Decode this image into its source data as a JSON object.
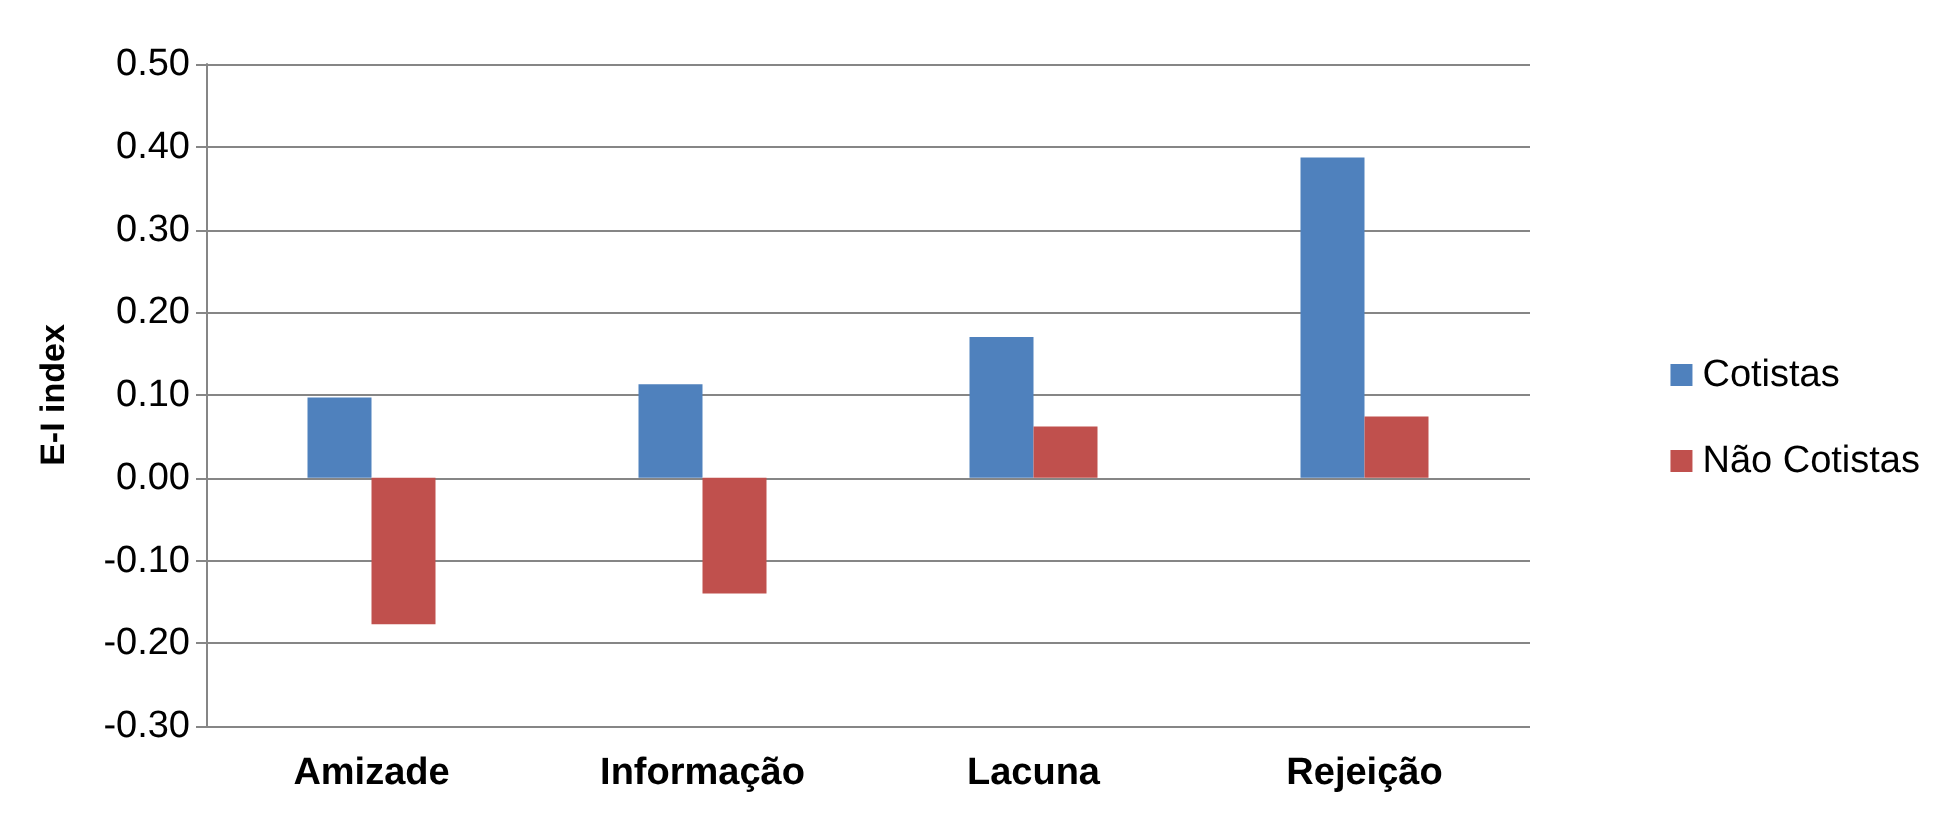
{
  "chart_data": {
    "type": "bar",
    "ylabel": "E-I index",
    "categories": [
      "Amizade",
      "Informação",
      "Lacuna",
      "Rejeição"
    ],
    "series": [
      {
        "name": "Cotistas",
        "color": "#4f81bd",
        "values": [
          0.097,
          0.113,
          0.17,
          0.387
        ]
      },
      {
        "name": "Não Cotistas",
        "color": "#c0504d",
        "values": [
          -0.177,
          -0.14,
          0.062,
          0.074
        ]
      }
    ],
    "ylim": [
      -0.3,
      0.5
    ],
    "yticks": [
      {
        "value": -0.3,
        "label": "-0.30"
      },
      {
        "value": -0.2,
        "label": "-0.20"
      },
      {
        "value": -0.1,
        "label": "-0.10"
      },
      {
        "value": 0,
        "label": "0.00"
      },
      {
        "value": 0.1,
        "label": "0.10"
      },
      {
        "value": 0.2,
        "label": "0.20"
      },
      {
        "value": 0.3,
        "label": "0.30"
      },
      {
        "value": 0.4,
        "label": "0.40"
      },
      {
        "value": 0.5,
        "label": "0.50"
      }
    ],
    "grid": "y",
    "legend": "right"
  }
}
